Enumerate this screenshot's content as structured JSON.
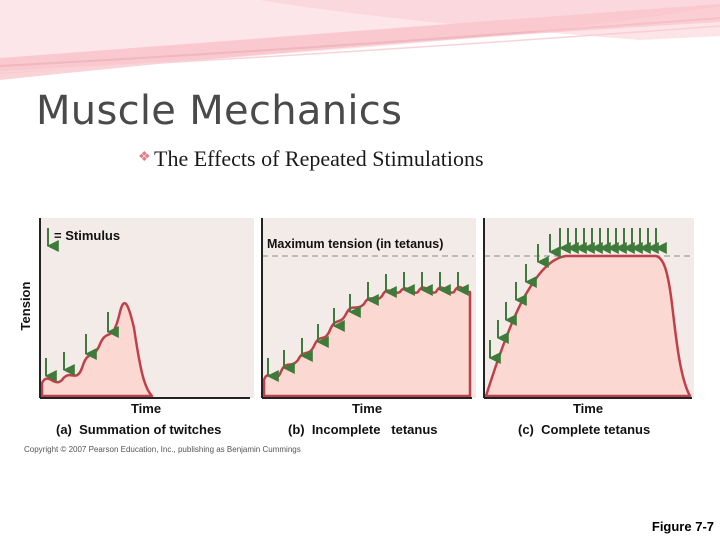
{
  "slide": {
    "title": "Muscle Mechanics",
    "subtitle": "The Effects of Repeated Stimulations",
    "figure_ref": "Figure 7-7"
  },
  "figure": {
    "y_axis_label": "Tension",
    "stimulus_legend": "= Stimulus",
    "max_tension_label": "Maximum tension (in tetanus)",
    "copyright": "Copyright © 2007 Pearson Education, Inc., publishing as Benjamin Cummings",
    "panels": [
      {
        "x_axis_label": "Time",
        "caption": "(a)  Summation of twitches"
      },
      {
        "x_axis_label": "Time",
        "caption": "(b)  Incomplete   tetanus"
      },
      {
        "x_axis_label": "Time",
        "caption": "(c)  Complete tetanus"
      }
    ]
  },
  "colors": {
    "panel_bg": "#f3ebe8",
    "curve_fill": "#fbd9d2",
    "curve_stroke": "#c0404a",
    "arrow": "#3f7a3a",
    "header_pink": "#f2a6b0",
    "bullet": "#e37a86"
  }
}
